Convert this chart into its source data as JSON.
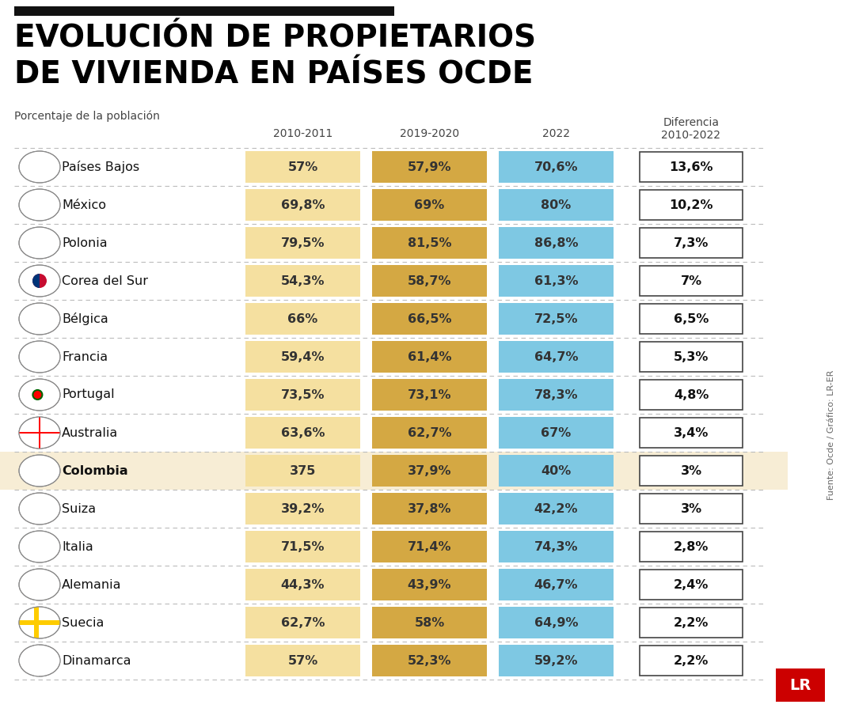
{
  "title_line1": "EVOLUCIÓN DE PROPIETARIOS",
  "title_line2": "DE VIVIENDA EN PAÍSES OCDE",
  "subtitle": "Porcentaje de la población",
  "source": "Fuente: Ocde / Gráfico: LR-ER",
  "countries": [
    {
      "name": "Países Bajos",
      "v1": "57%",
      "v2": "57,9%",
      "v3": "70,6%",
      "diff": "13,6%",
      "highlight": false,
      "bold": false
    },
    {
      "name": "México",
      "v1": "69,8%",
      "v2": "69%",
      "v3": "80%",
      "diff": "10,2%",
      "highlight": false,
      "bold": false
    },
    {
      "name": "Polonia",
      "v1": "79,5%",
      "v2": "81,5%",
      "v3": "86,8%",
      "diff": "7,3%",
      "highlight": false,
      "bold": false
    },
    {
      "name": "Corea del Sur",
      "v1": "54,3%",
      "v2": "58,7%",
      "v3": "61,3%",
      "diff": "7%",
      "highlight": false,
      "bold": false
    },
    {
      "name": "Bélgica",
      "v1": "66%",
      "v2": "66,5%",
      "v3": "72,5%",
      "diff": "6,5%",
      "highlight": false,
      "bold": false
    },
    {
      "name": "Francia",
      "v1": "59,4%",
      "v2": "61,4%",
      "v3": "64,7%",
      "diff": "5,3%",
      "highlight": false,
      "bold": false
    },
    {
      "name": "Portugal",
      "v1": "73,5%",
      "v2": "73,1%",
      "v3": "78,3%",
      "diff": "4,8%",
      "highlight": false,
      "bold": false
    },
    {
      "name": "Australia",
      "v1": "63,6%",
      "v2": "62,7%",
      "v3": "67%",
      "diff": "3,4%",
      "highlight": false,
      "bold": false
    },
    {
      "name": "Colombia",
      "v1": "375",
      "v2": "37,9%",
      "v3": "40%",
      "diff": "3%",
      "highlight": true,
      "bold": true
    },
    {
      "name": "Suiza",
      "v1": "39,2%",
      "v2": "37,8%",
      "v3": "42,2%",
      "diff": "3%",
      "highlight": false,
      "bold": false
    },
    {
      "name": "Italia",
      "v1": "71,5%",
      "v2": "71,4%",
      "v3": "74,3%",
      "diff": "2,8%",
      "highlight": false,
      "bold": false
    },
    {
      "name": "Alemania",
      "v1": "44,3%",
      "v2": "43,9%",
      "v3": "46,7%",
      "diff": "2,4%",
      "highlight": false,
      "bold": false
    },
    {
      "name": "Suecia",
      "v1": "62,7%",
      "v2": "58%",
      "v3": "64,9%",
      "diff": "2,2%",
      "highlight": false,
      "bold": false
    },
    {
      "name": "Dinamarca",
      "v1": "57%",
      "v2": "52,3%",
      "v3": "59,2%",
      "diff": "2,2%",
      "highlight": false,
      "bold": false
    }
  ],
  "color_v1": "#F5E0A0",
  "color_v2": "#D4A843",
  "color_v3": "#7EC8E3",
  "color_highlight_bg": "#F7EDD5",
  "bg_color": "#FFFFFF",
  "top_bar_color": "#111111",
  "lr_red": "#CC0000"
}
